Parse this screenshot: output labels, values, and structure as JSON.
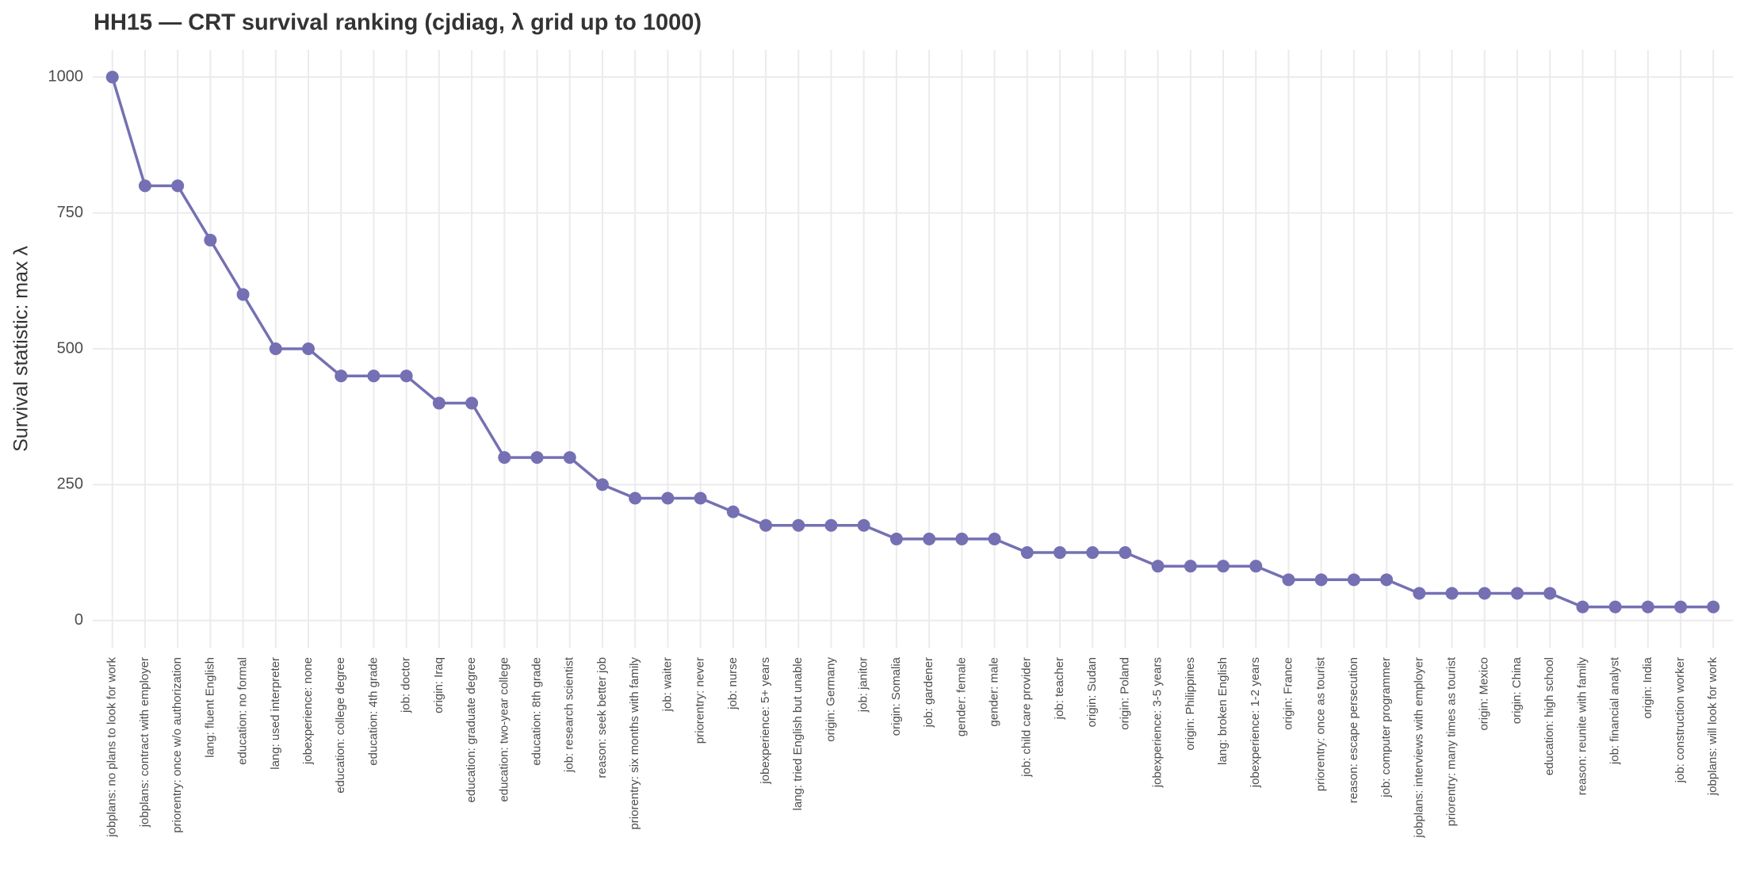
{
  "chart_data": {
    "type": "line",
    "title": "HH15 — CRT survival ranking (cjdiag, λ grid up to 1000)",
    "y_label": "Survival statistic: max λ",
    "categories": [
      "jobplans: no plans to look for work",
      "jobplans: contract with employer",
      "priorentry: once w/o authorization",
      "lang: fluent English",
      "education: no formal",
      "lang: used interpreter",
      "jobexperience: none",
      "education: college degree",
      "education: 4th grade",
      "job: doctor",
      "origin: Iraq",
      "education: graduate degree",
      "education: two-year college",
      "education: 8th grade",
      "job: research scientist",
      "reason: seek better job",
      "priorentry: six months with family",
      "job: waiter",
      "priorentry: never",
      "job: nurse",
      "jobexperience: 5+ years",
      "lang: tried English but unable",
      "origin: Germany",
      "job: janitor",
      "origin: Somalia",
      "job: gardener",
      "gender: female",
      "gender: male",
      "job: child care provider",
      "job: teacher",
      "origin: Sudan",
      "origin: Poland",
      "jobexperience: 3-5 years",
      "origin: Philippines",
      "lang: broken English",
      "jobexperience: 1-2 years",
      "origin: France",
      "priorentry: once as tourist",
      "reason: escape persecution",
      "job: computer programmer",
      "jobplans: interviews with employer",
      "priorentry: many times as tourist",
      "origin: Mexico",
      "origin: China",
      "education: high school",
      "reason: reunite with family",
      "job: financial analyst",
      "origin: India",
      "job: construction worker",
      "jobplans: will look for work"
    ],
    "values": [
      1000,
      800,
      800,
      700,
      600,
      500,
      500,
      450,
      450,
      450,
      400,
      400,
      300,
      300,
      300,
      250,
      225,
      225,
      225,
      200,
      175,
      175,
      175,
      175,
      150,
      150,
      150,
      150,
      125,
      125,
      125,
      125,
      100,
      100,
      100,
      100,
      75,
      75,
      75,
      75,
      50,
      50,
      50,
      50,
      50,
      25,
      25,
      25,
      25,
      25
    ],
    "color": "#7570b3",
    "ylim": [
      -50,
      1050
    ],
    "yticks": [
      0,
      250,
      500,
      750,
      1000
    ],
    "grid": true
  }
}
